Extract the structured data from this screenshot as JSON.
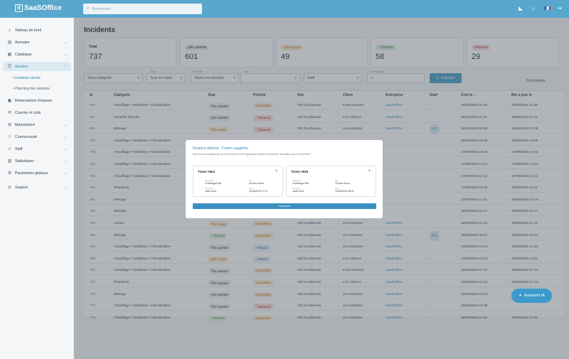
{
  "app": {
    "name": "SaaSOffice",
    "logo_glyph": "☰"
  },
  "search": {
    "placeholder": "Rechercher",
    "icon": "search-icon"
  },
  "topbar_icons": [
    "stats-icon",
    "sun-icon",
    "flag-fr-icon",
    "logout-icon"
  ],
  "sidebar": {
    "items": [
      {
        "label": "Tableau de bord",
        "icon": "home-icon",
        "chevron": false
      },
      {
        "label": "Annuaire",
        "icon": "contacts-icon",
        "chevron": true
      },
      {
        "label": "Catalogue",
        "icon": "catalog-icon",
        "chevron": true
      },
      {
        "label": "Gestion",
        "icon": "list-icon",
        "chevron": true,
        "active": true
      },
      {
        "label": "Réservations d'espace",
        "icon": "calendar-icon",
        "chevron": false
      },
      {
        "label": "Courrier et colis",
        "icon": "mail-icon",
        "chevron": false
      },
      {
        "label": "Marketplace",
        "icon": "shop-icon",
        "chevron": true
      },
      {
        "label": "Communauté",
        "icon": "community-icon",
        "chevron": true
      },
      {
        "label": "Staff",
        "icon": "staff-icon",
        "chevron": true
      },
      {
        "label": "Statistiques",
        "icon": "chart-icon",
        "chevron": true
      },
      {
        "label": "Paramètres globaux",
        "icon": "settings-icon",
        "chevron": true
      },
      {
        "label": "Support",
        "icon": "support-icon",
        "chevron": true
      }
    ],
    "subitems": [
      "Incidents clients",
      "Planning des services"
    ]
  },
  "page": {
    "title": "Incidents"
  },
  "stats": [
    {
      "label": "Total",
      "value": "737",
      "style": "plain"
    },
    {
      "label": "En attente",
      "value": "601",
      "style": "att"
    },
    {
      "label": "En cours",
      "value": "49",
      "style": "cours"
    },
    {
      "label": "Terminé",
      "value": "58",
      "style": "term"
    },
    {
      "label": "Annulé",
      "value": "29",
      "style": "ann"
    }
  ],
  "filters": {
    "subcategory": "Sous-catégorie",
    "etat_label": "État",
    "etat_value": "Tous les états",
    "priorite_label": "Priorité",
    "priorite_value": "Toutes les priorités",
    "site_label": "Site",
    "site_value": "",
    "staff_value": "Staff",
    "entreprise_label": "Entreprise",
    "entreprise_value": "",
    "export_label": "Exporter",
    "count_label": "63 incidents"
  },
  "columns": [
    "Id",
    "Catégorie",
    "État",
    "Priorité",
    "Site",
    "Client",
    "Entreprise",
    "Staff",
    "Créé le",
    "Mis à jour le"
  ],
  "rows": [
    {
      "id": "802",
      "cat": "Chauffage / Ventilation / Climatisation",
      "etat": "En attente",
      "prio": "Important",
      "site": "Odi Courbevoie",
      "client": "Kevin Durand",
      "ent": "SaaSOffice",
      "staff": "-",
      "cree": "16/09/2026 11:39",
      "maj": "16/09/2026 11:39"
    },
    {
      "id": "801",
      "cat": "Contrôle d'accès",
      "etat": "En attente",
      "prio": "Bloquant",
      "site": "Odi Courbevoie",
      "client": "Léo Chance",
      "ent": "SaaSOffice",
      "staff": "-",
      "cree": "16/09/2026 11:11",
      "maj": "16/09/2026 11:11"
    },
    {
      "id": "800",
      "cat": "Ménage",
      "etat": "En cours",
      "prio": "Bloquant",
      "site": "Odi Courbevoie",
      "client": "Joe Harisson",
      "ent": "SaaSOffice",
      "staff": "FG",
      "cree": "16/09/2026 11:09",
      "maj": "16/09/2026 10:09"
    },
    {
      "id": "799",
      "cat": "Chauffage / Ventilation / Climatisation",
      "etat": "",
      "prio": "",
      "site": "",
      "client": "",
      "ent": "",
      "staff": "",
      "cree": "16/09/2026 10:06",
      "maj": "16/09/2026 10:06"
    },
    {
      "id": "795",
      "cat": "Chauffage / Ventilation / Climatisation",
      "etat": "",
      "prio": "",
      "site": "",
      "client": "",
      "ent": "",
      "staff": "",
      "cree": "17/09/2026 14:45",
      "maj": "17/09/2026 14:43"
    },
    {
      "id": "794",
      "cat": "Chauffage / Ventilation / Climatisation",
      "etat": "",
      "prio": "",
      "site": "",
      "client": "",
      "ent": "",
      "staff": "",
      "cree": "17/09/2026 13:41",
      "maj": "17/09/2026 13:41"
    },
    {
      "id": "793",
      "cat": "Chauffage / Ventilation / Climatisation",
      "etat": "",
      "prio": "",
      "site": "",
      "client": "",
      "ent": "",
      "staff": "",
      "cree": "17/09/2026 10:11",
      "maj": "17/09/2026 10:11"
    },
    {
      "id": "792",
      "cat": "Plomberie",
      "etat": "",
      "prio": "",
      "site": "",
      "client": "",
      "ent": "",
      "staff": "",
      "cree": "17/09/2026 12:00",
      "maj": "16/09/2026 10:11"
    },
    {
      "id": "791",
      "cat": "Ménage",
      "etat": "",
      "prio": "",
      "site": "",
      "client": "",
      "ent": "",
      "staff": "",
      "cree": "17/09/2026 11:21",
      "maj": "16/09/2026 10:19"
    },
    {
      "id": "790",
      "cat": "Ménage",
      "etat": "",
      "prio": "",
      "site": "",
      "client": "",
      "ent": "",
      "staff": "",
      "cree": "16/09/2026 11:17",
      "maj": "16/09/2026 11:17"
    },
    {
      "id": "789",
      "cat": "Autres",
      "etat": "En cours",
      "prio": "Important",
      "site": "Odi Courbevoie",
      "client": "Joe Harisson",
      "ent": "SaaSOffice",
      "staff": "-",
      "cree": "16/09/2026 11:12",
      "maj": "16/09/2026 11:12"
    },
    {
      "id": "785",
      "cat": "Ménage",
      "etat": "Terminé",
      "prio": "Important",
      "site": "Odi Courbevoie",
      "client": "Joe Harisson",
      "ent": "SaaSOffice",
      "staff": "AH",
      "cree": "15/09/2026 09:37",
      "maj": "16/09/2026 10:21"
    },
    {
      "id": "784",
      "cat": "Chauffage / Ventilation / Climatisation",
      "etat": "En attente",
      "prio": "Mineur",
      "site": "Odi Courbevoie",
      "client": "Joe Harisson",
      "ent": "SaaSOffice",
      "staff": "-",
      "cree": "14/09/2026 14:43",
      "maj": "14/09/2026 14:43"
    },
    {
      "id": "783",
      "cat": "Chauffage / Ventilation / Climatisation",
      "etat": "En cours",
      "prio": "Mineur",
      "site": "Odi Courbevoie",
      "client": "Léo Chance",
      "ent": "SaaSOffice",
      "staff": "-",
      "cree": "14/09/2026 12:43",
      "maj": "14/09/2026 14:51"
    },
    {
      "id": "782",
      "cat": "Chauffage / Ventilation / Climatisation",
      "etat": "En attente",
      "prio": "Important",
      "site": "Odi Courbevoie",
      "client": "Kevin Durand",
      "ent": "SaaSOffice",
      "staff": "-",
      "cree": "10/09/2026 17:12",
      "maj": "10/09/2026 17:12"
    },
    {
      "id": "781",
      "cat": "Plomberie",
      "etat": "En attente",
      "prio": "Important",
      "site": "Odi Courbevoie",
      "client": "Léo Chance",
      "ent": "SaaSOffice",
      "staff": "-",
      "cree": "10/09/2026 12:12",
      "maj": "10/09/2026 17:12"
    },
    {
      "id": "778",
      "cat": "Ménage",
      "etat": "En attente",
      "prio": "Important",
      "site": "Odi Courbevoie",
      "client": "Joe Harisson",
      "ent": "SaaSOffice",
      "staff": "-",
      "cree": "10/09/2026 10:23",
      "maj": ""
    },
    {
      "id": "777",
      "cat": "Chauffage / Ventilation / Climatisation",
      "etat": "En attente",
      "prio": "Bloquant",
      "site": "Odi Courbevoie",
      "client": "Joe Harisson",
      "ent": "SaaSOffice",
      "staff": "-",
      "cree": "10/09/2026 12:38",
      "maj": ""
    },
    {
      "id": "776",
      "cat": "Chauffage / Ventilation / Climatisation",
      "etat": "Terminé",
      "prio": "Important",
      "site": "Odi Courbevoie",
      "client": "Joe Harisson",
      "ent": "SaaSOffice",
      "staff": "-",
      "cree": "09/09/2026 11:05",
      "maj": "10/09/2026 11:05"
    }
  ],
  "modal": {
    "title": "Doublon détecté - Fusion suggérée",
    "description": "Nous avons remarqué que le même incident a été signalé par plusieurs personnes. Souhaitez-vous les fusionner ?",
    "tickets": [
      {
        "name": "Ticket #802",
        "k1": "Catégorie",
        "v1": "Chauffage/Clim",
        "k2": "Site",
        "v2": "4h chez Nova",
        "k3": "Entreprise",
        "v3": "Jade Sorel",
        "k4": "Date",
        "v4": "21/05/2026 17:07"
      },
      {
        "name": "Ticket #839",
        "k1": "Catégorie",
        "v1": "Chauffage/Clim",
        "k2": "Site",
        "v2": "4h chez Nova",
        "k3": "Entreprise",
        "v3": "Jade Sorel",
        "k4": "Date",
        "v4": "20/05/2026 08:03"
      }
    ],
    "action": "Fusionner"
  },
  "assistant": {
    "label": "Assistant IA",
    "icon": "sparkle-icon"
  },
  "colors": {
    "accent": "#58a7cc",
    "link": "#3b88b5"
  }
}
